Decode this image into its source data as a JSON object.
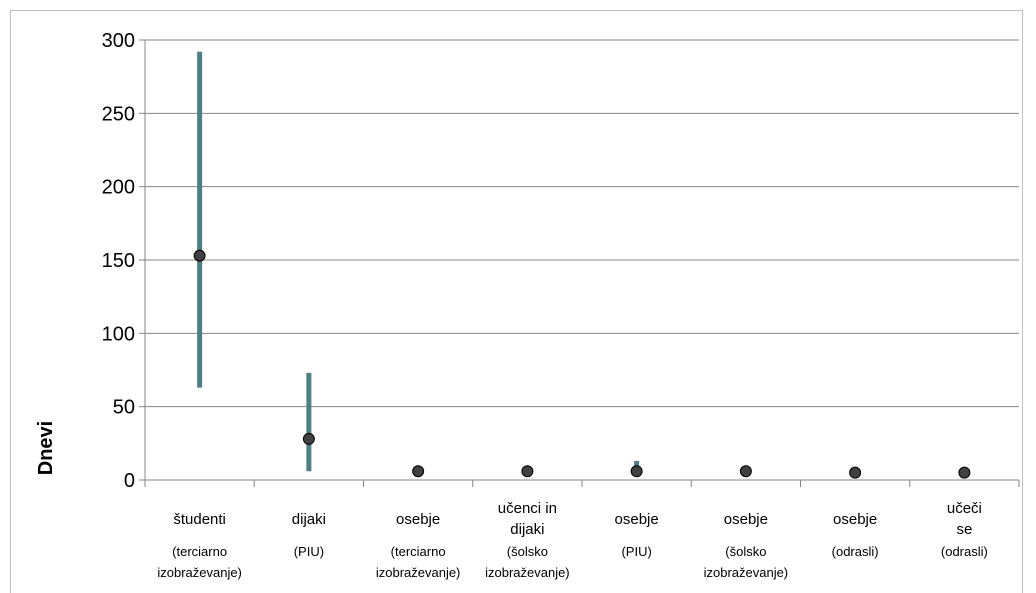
{
  "chart_data": {
    "type": "scatter",
    "ylabel": "Dnevi",
    "ylim": [
      0,
      300
    ],
    "yticks": [
      0,
      50,
      100,
      150,
      200,
      250,
      300
    ],
    "grid": true,
    "categories": [
      {
        "label": [
          "študenti"
        ],
        "sub": [
          "(terciarno",
          "izobraževanje)"
        ]
      },
      {
        "label": [
          "dijaki"
        ],
        "sub": [
          "(PIU)"
        ]
      },
      {
        "label": [
          "osebje"
        ],
        "sub": [
          "(terciarno",
          "izobraževanje)"
        ]
      },
      {
        "label": [
          "učenci in",
          "dijaki"
        ],
        "sub": [
          "(šolsko",
          "izobraževanje)"
        ]
      },
      {
        "label": [
          "osebje"
        ],
        "sub": [
          "(PIU)"
        ]
      },
      {
        "label": [
          "osebje"
        ],
        "sub": [
          "(šolsko",
          "izobraževanje)"
        ]
      },
      {
        "label": [
          "osebje"
        ],
        "sub": [
          "(odrasli)"
        ]
      },
      {
        "label": [
          "učeči",
          "se"
        ],
        "sub": [
          "(odrasli)"
        ]
      }
    ],
    "values": [
      153,
      28,
      6,
      6,
      6,
      6,
      5,
      5
    ],
    "ranges": [
      [
        63,
        292
      ],
      [
        6,
        73
      ],
      null,
      null,
      [
        6,
        13
      ],
      null,
      null,
      null
    ],
    "colors": {
      "range": "#4e7f86",
      "point": "#404040",
      "grid": "#868686"
    }
  }
}
